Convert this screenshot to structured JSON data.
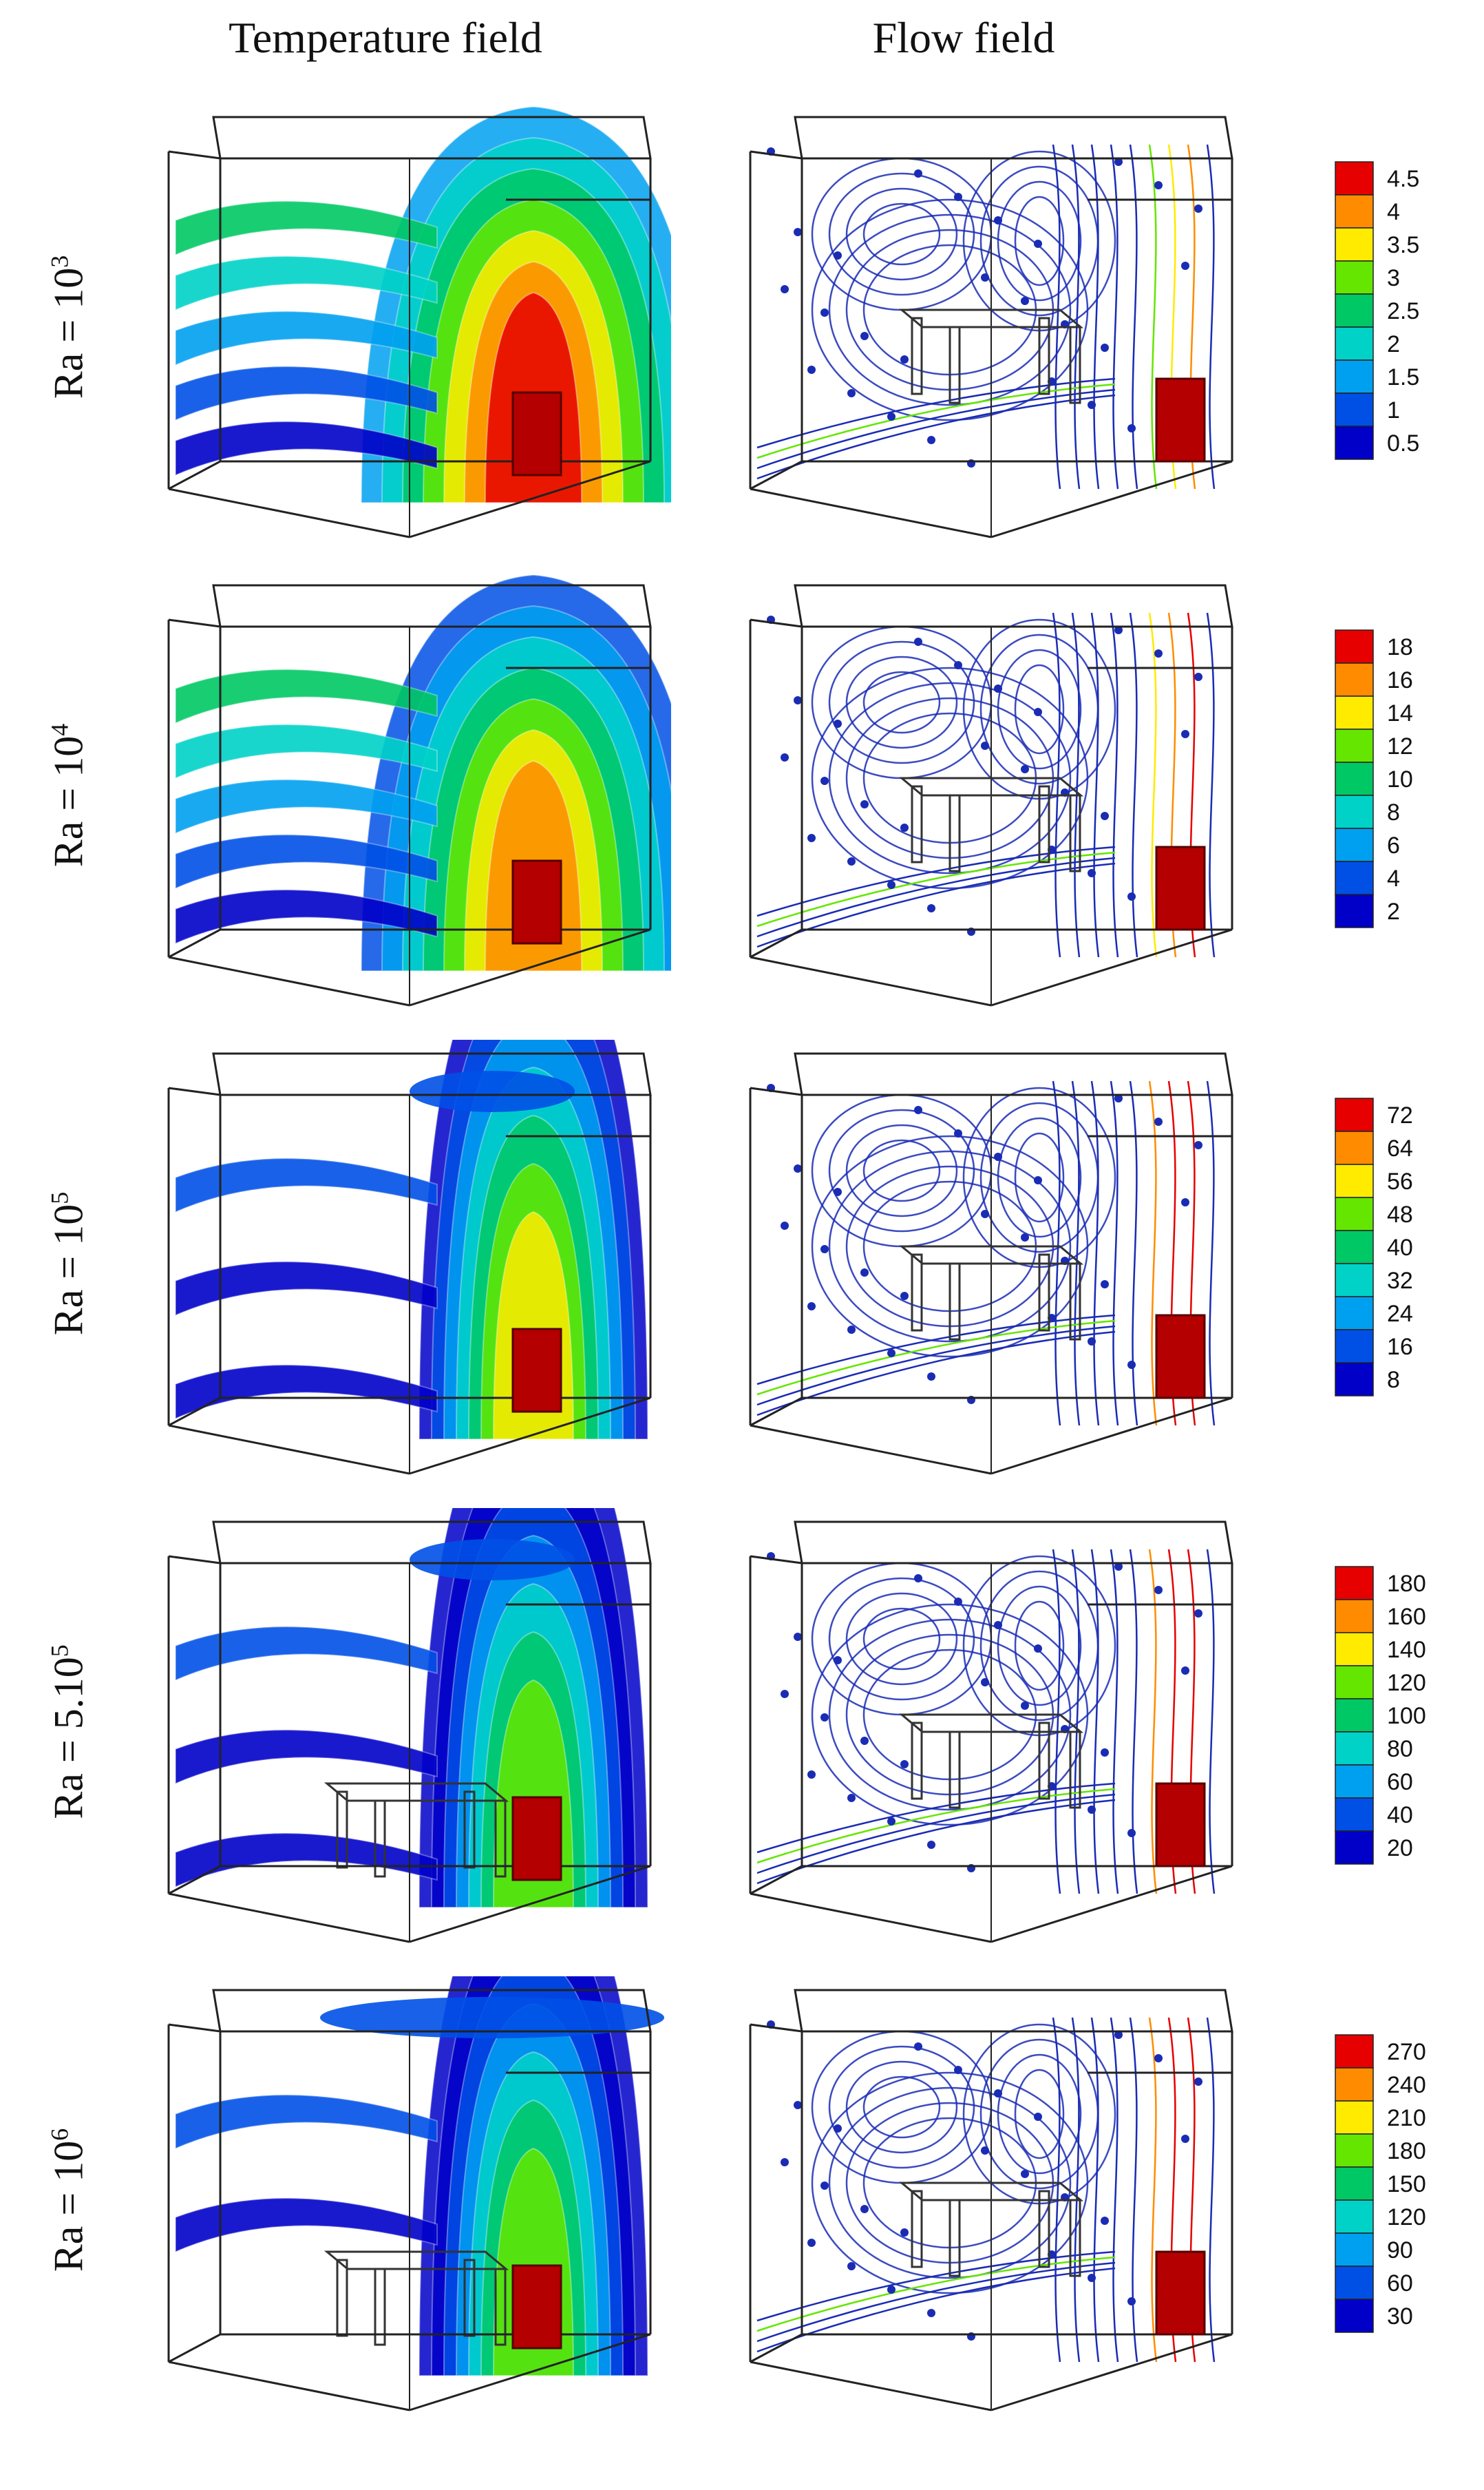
{
  "headers": {
    "temperature": "Temperature field",
    "flow": "Flow field"
  },
  "rows": [
    {
      "ra_base": "Ra = 10",
      "ra_exp": "3",
      "legend_ticks": [
        "4.5",
        "4",
        "3.5",
        "3",
        "2.5",
        "2",
        "1.5",
        "1",
        "0.5"
      ]
    },
    {
      "ra_base": "Ra = 10",
      "ra_exp": "4",
      "legend_ticks": [
        "18",
        "16",
        "14",
        "12",
        "10",
        "8",
        "6",
        "4",
        "2"
      ]
    },
    {
      "ra_base": "Ra = 10",
      "ra_exp": "5",
      "legend_ticks": [
        "72",
        "64",
        "56",
        "48",
        "40",
        "32",
        "24",
        "16",
        "8"
      ]
    },
    {
      "ra_base": "Ra = 5.10",
      "ra_exp": "5",
      "legend_ticks": [
        "180",
        "160",
        "140",
        "120",
        "100",
        "80",
        "60",
        "40",
        "20"
      ]
    },
    {
      "ra_base": "Ra = 10",
      "ra_exp": "6",
      "legend_ticks": [
        "270",
        "240",
        "210",
        "180",
        "150",
        "120",
        "90",
        "60",
        "30"
      ]
    }
  ],
  "colors": {
    "colormap": [
      "#0000c8",
      "#0050e6",
      "#00a0f0",
      "#00d2c8",
      "#00c864",
      "#64e600",
      "#ffeb00",
      "#ff8c00",
      "#e60000"
    ],
    "heater": "#b40000",
    "box_line": "#222222",
    "streamline": "#1a2cb4"
  }
}
